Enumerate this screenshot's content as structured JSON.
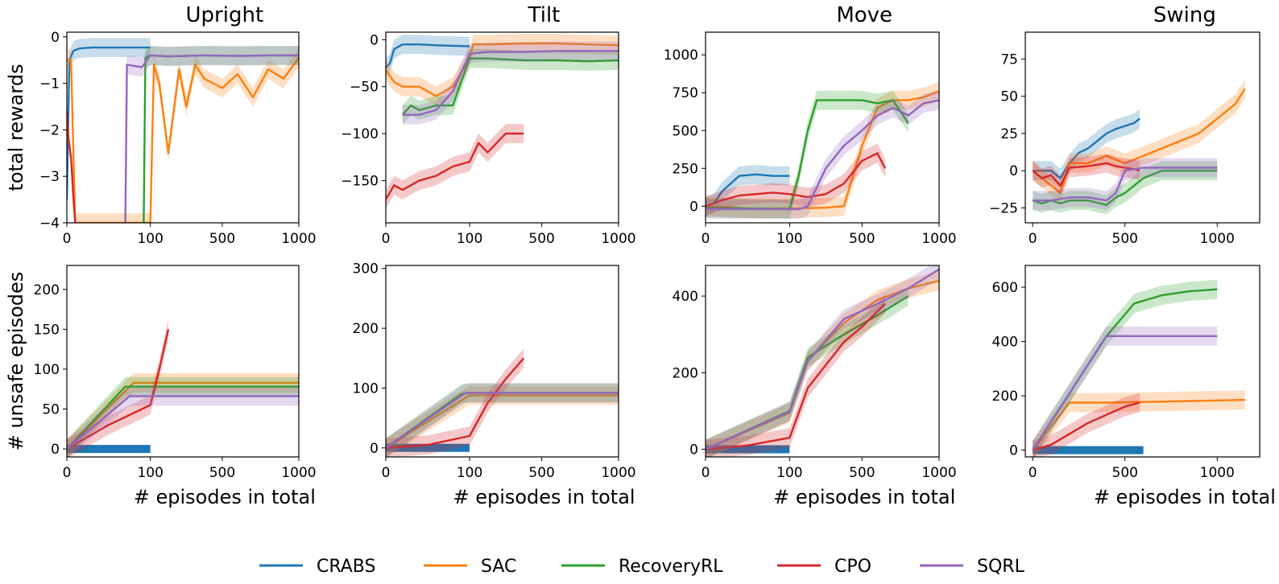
{
  "colors": {
    "CRABS": "#1f77b4",
    "SAC": "#ff7f0e",
    "RecoveryRL": "#2ca02c",
    "CPO": "#d62728",
    "SQRL": "#9467bd"
  },
  "legend": [
    "CRABS",
    "SAC",
    "RecoveryRL",
    "CPO",
    "SQRL"
  ],
  "chart_data": [
    {
      "type": "line",
      "title": "Upright",
      "ylabel": "total rewards",
      "xlabel": "",
      "xticks": [
        "0",
        "100",
        "500",
        "1000"
      ],
      "yticks": [
        "0",
        "−1",
        "−2",
        "−3",
        "−4"
      ],
      "ylim": [
        -4,
        0.1
      ],
      "x_note": "piecewise scale: 0-100 expanded, 100-1000 compressed",
      "series": [
        {
          "name": "CRABS",
          "x": [
            0,
            3,
            8,
            15,
            30,
            60,
            100
          ],
          "y": [
            -3.5,
            -0.5,
            -0.3,
            -0.25,
            -0.23,
            -0.23,
            -0.23
          ]
        },
        {
          "name": "SAC",
          "x": [
            0,
            5,
            10,
            100,
            120,
            150,
            200,
            260,
            300,
            350,
            400,
            500,
            600,
            700,
            800,
            900,
            1000
          ],
          "y": [
            -0.5,
            -0.5,
            -4.0,
            -4.0,
            -0.6,
            -1.0,
            -2.5,
            -0.7,
            -1.5,
            -0.6,
            -0.9,
            -1.1,
            -0.8,
            -1.3,
            -0.7,
            -0.9,
            -0.45
          ]
        },
        {
          "name": "RecoveryRL",
          "x": [
            92,
            94,
            100,
            200,
            400,
            600,
            800,
            1000
          ],
          "y": [
            -4.0,
            -0.45,
            -0.4,
            -0.42,
            -0.4,
            -0.41,
            -0.4,
            -0.4
          ]
        },
        {
          "name": "CPO",
          "x": [
            0,
            2,
            5,
            8,
            10
          ],
          "y": [
            -1.6,
            -2.2,
            -2.6,
            -3.5,
            -4.0
          ]
        },
        {
          "name": "SQRL",
          "x": [
            70,
            72,
            90,
            100,
            200,
            400,
            600,
            800,
            1000
          ],
          "y": [
            -4.0,
            -0.6,
            -0.65,
            -0.4,
            -0.42,
            -0.4,
            -0.41,
            -0.4,
            -0.4
          ]
        }
      ]
    },
    {
      "type": "line",
      "title": "Tilt",
      "ylabel": "",
      "xlabel": "",
      "xticks": [
        "0",
        "100",
        "500",
        "1000"
      ],
      "yticks": [
        "0",
        "−50",
        "−100",
        "−150"
      ],
      "ylim": [
        -195,
        8
      ],
      "x_note": "piecewise scale: 0-100 expanded, 100-1000 compressed",
      "series": [
        {
          "name": "CRABS",
          "x": [
            0,
            5,
            10,
            20,
            40,
            60,
            100
          ],
          "y": [
            -30,
            -25,
            -10,
            -5,
            -5,
            -6,
            -7
          ]
        },
        {
          "name": "SAC",
          "x": [
            0,
            10,
            20,
            40,
            60,
            80,
            100,
            120,
            200,
            400,
            600,
            800,
            1000
          ],
          "y": [
            -32,
            -45,
            -50,
            -50,
            -60,
            -50,
            -20,
            -5,
            -5,
            -4,
            -4,
            -5,
            -6
          ]
        },
        {
          "name": "RecoveryRL",
          "x": [
            20,
            30,
            40,
            60,
            80,
            100,
            120,
            200,
            400,
            600,
            800,
            1000
          ],
          "y": [
            -80,
            -70,
            -75,
            -70,
            -70,
            -20,
            -20,
            -20,
            -22,
            -22,
            -23,
            -22
          ]
        },
        {
          "name": "CPO",
          "x": [
            0,
            10,
            20,
            40,
            60,
            80,
            100,
            150,
            200,
            300,
            400
          ],
          "y": [
            -170,
            -155,
            -160,
            -150,
            -145,
            -135,
            -130,
            -110,
            -120,
            -100,
            -100
          ]
        },
        {
          "name": "SQRL",
          "x": [
            20,
            40,
            60,
            80,
            100,
            200,
            400,
            600,
            800,
            1000
          ],
          "y": [
            -80,
            -80,
            -75,
            -55,
            -15,
            -13,
            -13,
            -12,
            -12,
            -12
          ]
        }
      ]
    },
    {
      "type": "line",
      "title": "Move",
      "ylabel": "",
      "xlabel": "",
      "xticks": [
        "0",
        "100",
        "500",
        "1000"
      ],
      "yticks": [
        "0",
        "250",
        "500",
        "750",
        "1000"
      ],
      "ylim": [
        -110,
        1150
      ],
      "x_note": "piecewise scale: 0-100 expanded, 100-1000 compressed",
      "series": [
        {
          "name": "CRABS",
          "x": [
            0,
            10,
            20,
            40,
            60,
            80,
            100
          ],
          "y": [
            0,
            20,
            100,
            200,
            210,
            200,
            200
          ]
        },
        {
          "name": "SAC",
          "x": [
            0,
            50,
            100,
            300,
            400,
            450,
            500,
            600,
            700,
            800,
            900,
            1000
          ],
          "y": [
            0,
            -15,
            -15,
            -10,
            0,
            200,
            400,
            650,
            700,
            700,
            720,
            760
          ]
        },
        {
          "name": "RecoveryRL",
          "x": [
            0,
            50,
            100,
            150,
            200,
            250,
            300,
            400,
            500,
            600,
            700,
            800
          ],
          "y": [
            -10,
            -15,
            -20,
            200,
            500,
            700,
            700,
            700,
            700,
            680,
            700,
            550
          ]
        },
        {
          "name": "CPO",
          "x": [
            0,
            20,
            40,
            60,
            80,
            100,
            200,
            300,
            400,
            500,
            600,
            650
          ],
          "y": [
            0,
            40,
            70,
            80,
            90,
            80,
            60,
            80,
            150,
            300,
            350,
            250
          ]
        },
        {
          "name": "SQRL",
          "x": [
            0,
            50,
            100,
            150,
            200,
            300,
            400,
            500,
            600,
            700,
            800,
            900,
            1000
          ],
          "y": [
            -20,
            -20,
            -20,
            -20,
            0,
            250,
            400,
            500,
            600,
            650,
            600,
            680,
            700
          ]
        }
      ]
    },
    {
      "type": "line",
      "title": "Swing",
      "ylabel": "",
      "xlabel": "",
      "xticks": [
        "0",
        "500",
        "1000"
      ],
      "yticks": [
        "−25",
        "0",
        "25",
        "50",
        "75"
      ],
      "ylim": [
        -35,
        93
      ],
      "series": [
        {
          "name": "CRABS",
          "x": [
            0,
            100,
            150,
            200,
            250,
            300,
            350,
            400,
            450,
            500,
            550,
            580
          ],
          "y": [
            0,
            0,
            -5,
            5,
            12,
            15,
            20,
            25,
            28,
            30,
            32,
            35
          ]
        },
        {
          "name": "SAC",
          "x": [
            0,
            100,
            150,
            200,
            300,
            400,
            500,
            600,
            700,
            800,
            900,
            1000,
            1100,
            1150
          ],
          "y": [
            0,
            -10,
            -15,
            5,
            5,
            10,
            5,
            10,
            15,
            20,
            25,
            35,
            45,
            55
          ]
        },
        {
          "name": "RecoveryRL",
          "x": [
            0,
            50,
            100,
            150,
            200,
            300,
            400,
            450,
            500,
            550,
            600,
            700,
            800,
            900,
            1000
          ],
          "y": [
            -20,
            -22,
            -20,
            -22,
            -20,
            -20,
            -23,
            -18,
            -15,
            -10,
            -5,
            0,
            0,
            0,
            0
          ]
        },
        {
          "name": "CPO",
          "x": [
            0,
            50,
            100,
            150,
            200,
            300,
            400,
            450,
            500,
            550,
            580
          ],
          "y": [
            0,
            -5,
            -3,
            -10,
            2,
            3,
            5,
            3,
            2,
            1,
            0
          ]
        },
        {
          "name": "SQRL",
          "x": [
            0,
            100,
            200,
            300,
            400,
            450,
            500,
            600,
            700,
            800,
            900,
            1000
          ],
          "y": [
            -20,
            -20,
            -18,
            -18,
            -20,
            -15,
            0,
            2,
            2,
            2,
            2,
            2
          ]
        }
      ]
    },
    {
      "type": "line",
      "title": "",
      "ylabel": "# unsafe episodes",
      "xlabel": "# episodes in total",
      "xticks": [
        "0",
        "100",
        "500",
        "1000"
      ],
      "yticks": [
        "0",
        "50",
        "100",
        "150",
        "200"
      ],
      "ylim": [
        -10,
        230
      ],
      "x_note": "piecewise scale: 0-100 expanded, 100-1000 compressed",
      "series": [
        {
          "name": "CRABS",
          "x": [
            0,
            100
          ],
          "y": [
            0,
            0
          ]
        },
        {
          "name": "SAC",
          "x": [
            0,
            80,
            100,
            1000
          ],
          "y": [
            0,
            83,
            83,
            83
          ]
        },
        {
          "name": "RecoveryRL",
          "x": [
            0,
            70,
            100,
            1000
          ],
          "y": [
            0,
            78,
            78,
            78
          ]
        },
        {
          "name": "CPO",
          "x": [
            0,
            50,
            100,
            150,
            200
          ],
          "y": [
            0,
            30,
            55,
            100,
            150
          ]
        },
        {
          "name": "SQRL",
          "x": [
            0,
            75,
            100,
            1000
          ],
          "y": [
            0,
            66,
            66,
            66
          ]
        }
      ]
    },
    {
      "type": "line",
      "title": "",
      "ylabel": "",
      "xlabel": "# episodes in total",
      "xticks": [
        "0",
        "100",
        "500",
        "1000"
      ],
      "yticks": [
        "0",
        "100",
        "200",
        "300"
      ],
      "ylim": [
        -15,
        305
      ],
      "x_note": "piecewise scale: 0-100 expanded, 100-1000 compressed",
      "series": [
        {
          "name": "CRABS",
          "x": [
            0,
            100
          ],
          "y": [
            0,
            0
          ]
        },
        {
          "name": "SAC",
          "x": [
            0,
            100,
            1000
          ],
          "y": [
            0,
            88,
            88
          ]
        },
        {
          "name": "RecoveryRL",
          "x": [
            0,
            90,
            100,
            1000
          ],
          "y": [
            0,
            90,
            92,
            92
          ]
        },
        {
          "name": "CPO",
          "x": [
            0,
            50,
            100,
            200,
            300,
            400
          ],
          "y": [
            0,
            5,
            20,
            75,
            115,
            150
          ]
        },
        {
          "name": "SQRL",
          "x": [
            0,
            95,
            100,
            1000
          ],
          "y": [
            0,
            92,
            92,
            92
          ]
        }
      ]
    },
    {
      "type": "line",
      "title": "",
      "ylabel": "",
      "xlabel": "# episodes in total",
      "xticks": [
        "0",
        "100",
        "500",
        "1000"
      ],
      "yticks": [
        "0",
        "200",
        "400"
      ],
      "ylim": [
        -20,
        480
      ],
      "x_note": "piecewise scale: 0-100 expanded, 100-1000 compressed",
      "series": [
        {
          "name": "CRABS",
          "x": [
            0,
            100
          ],
          "y": [
            0,
            0
          ]
        },
        {
          "name": "SAC",
          "x": [
            0,
            100,
            200,
            400,
            600,
            800,
            1000
          ],
          "y": [
            0,
            95,
            230,
            330,
            390,
            420,
            440
          ]
        },
        {
          "name": "RecoveryRL",
          "x": [
            0,
            100,
            200,
            400,
            600,
            800
          ],
          "y": [
            0,
            100,
            240,
            300,
            350,
            400
          ]
        },
        {
          "name": "CPO",
          "x": [
            0,
            50,
            100,
            200,
            300,
            400,
            500,
            650
          ],
          "y": [
            0,
            10,
            30,
            160,
            220,
            280,
            320,
            380
          ]
        },
        {
          "name": "SQRL",
          "x": [
            0,
            100,
            200,
            400,
            600,
            800,
            1000
          ],
          "y": [
            0,
            98,
            230,
            340,
            380,
            420,
            470
          ]
        }
      ]
    },
    {
      "type": "line",
      "title": "",
      "ylabel": "",
      "xlabel": "# episodes in total",
      "xticks": [
        "0",
        "500",
        "1000"
      ],
      "yticks": [
        "0",
        "200",
        "400",
        "600"
      ],
      "ylim": [
        -25,
        680
      ],
      "series": [
        {
          "name": "CRABS",
          "x": [
            0,
            600
          ],
          "y": [
            0,
            0
          ]
        },
        {
          "name": "SAC",
          "x": [
            0,
            200,
            400,
            800,
            1150
          ],
          "y": [
            0,
            175,
            175,
            180,
            185
          ]
        },
        {
          "name": "RecoveryRL",
          "x": [
            0,
            400,
            550,
            700,
            850,
            1000
          ],
          "y": [
            0,
            420,
            540,
            570,
            585,
            592
          ]
        },
        {
          "name": "CPO",
          "x": [
            0,
            100,
            200,
            300,
            400,
            500,
            580
          ],
          "y": [
            0,
            20,
            60,
            100,
            130,
            160,
            175
          ]
        },
        {
          "name": "SQRL",
          "x": [
            0,
            400,
            1000
          ],
          "y": [
            0,
            420,
            420
          ]
        }
      ]
    }
  ]
}
